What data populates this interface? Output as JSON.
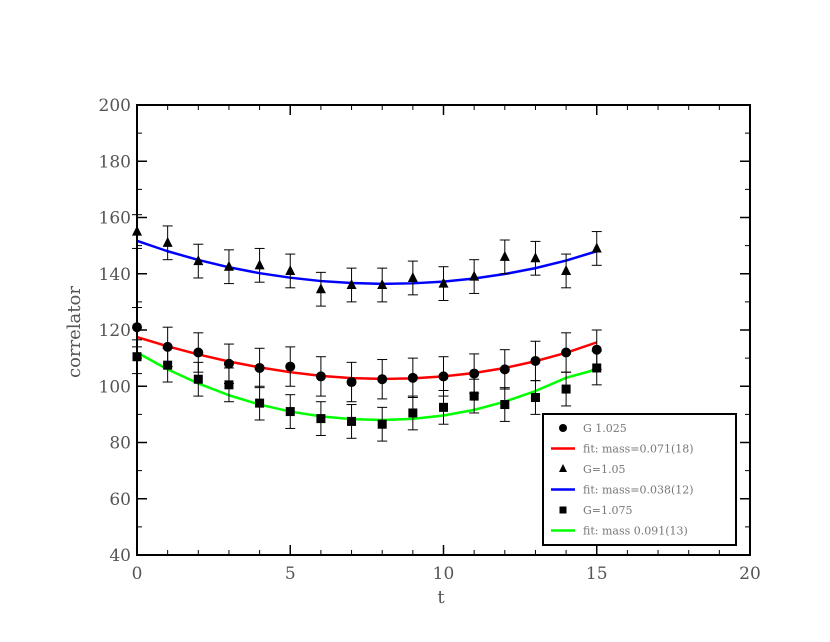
{
  "chart_data": {
    "type": "scatter",
    "xlabel": "t",
    "ylabel": "correlator",
    "xlim": [
      0,
      20
    ],
    "ylim": [
      40,
      200
    ],
    "xticks": [
      0,
      5,
      10,
      15,
      20
    ],
    "yticks": [
      40,
      60,
      80,
      100,
      120,
      140,
      160,
      180,
      200
    ],
    "x_tick_labels": [
      "0",
      "5",
      "10",
      "15",
      "20"
    ],
    "y_tick_labels": [
      "40",
      "60",
      "80",
      "100",
      "120",
      "140",
      "160",
      "180",
      "200"
    ],
    "grid": false,
    "legend_position": "bottom-right",
    "series": [
      {
        "name": "G 1.025",
        "marker": "circle",
        "color": "#000000",
        "x": [
          0,
          1,
          2,
          3,
          4,
          5,
          6,
          7,
          8,
          9,
          10,
          11,
          12,
          13,
          14,
          15
        ],
        "y": [
          121,
          114,
          112,
          108,
          106.5,
          107,
          103.5,
          101.5,
          102.5,
          103,
          103.5,
          104.5,
          106,
          109,
          112,
          113
        ],
        "err": [
          7,
          7,
          7,
          7,
          7,
          7,
          7,
          7,
          7,
          7,
          7,
          7,
          7,
          7,
          7,
          7
        ],
        "fit_name": "fit: mass=0.071(18)",
        "fit_color": "#ff0000",
        "fit_y": [
          117.5,
          114.2,
          111.3,
          108.8,
          106.7,
          105.0,
          103.7,
          102.9,
          102.6,
          102.8,
          103.5,
          104.7,
          106.5,
          108.9,
          111.9,
          115.6
        ]
      },
      {
        "name": "G=1.05",
        "marker": "triangle",
        "color": "#000000",
        "x": [
          0,
          1,
          2,
          3,
          4,
          5,
          6,
          7,
          8,
          9,
          10,
          11,
          12,
          13,
          14,
          15
        ],
        "y": [
          155,
          151,
          144.5,
          142.5,
          143,
          141,
          134.5,
          136,
          136,
          138.5,
          136.5,
          139,
          146,
          145.5,
          141,
          149
        ],
        "err": [
          6,
          6,
          6,
          6,
          6,
          6,
          6,
          6,
          6,
          6,
          6,
          6,
          6,
          6,
          6,
          6
        ],
        "fit_name": "fit: mass=0.038(12)",
        "fit_color": "#0000ff",
        "fit_y": [
          151.7,
          148.0,
          144.9,
          142.3,
          140.2,
          138.6,
          137.4,
          136.7,
          136.4,
          136.6,
          137.2,
          138.3,
          139.9,
          142.0,
          144.7,
          148.0
        ]
      },
      {
        "name": "G=1.075",
        "marker": "square",
        "color": "#000000",
        "x": [
          0,
          1,
          2,
          3,
          4,
          5,
          6,
          7,
          8,
          9,
          10,
          11,
          12,
          13,
          14,
          15
        ],
        "y": [
          110.5,
          107.5,
          102.5,
          100.5,
          94,
          91,
          88.5,
          87.5,
          86.5,
          90.5,
          92.5,
          96.5,
          93.5,
          96,
          99,
          106.5
        ],
        "err": [
          6,
          6,
          6,
          6,
          6,
          6,
          6,
          6,
          6,
          6,
          6,
          6,
          6,
          6,
          6,
          6
        ],
        "fit_name": "fit: mass 0.091(13)",
        "fit_color": "#00ff00",
        "fit_y": [
          112.0,
          106.0,
          101.0,
          96.8,
          93.5,
          91.0,
          89.3,
          88.3,
          88.0,
          88.4,
          89.6,
          91.6,
          94.5,
          98.3,
          103.0,
          106.0
        ]
      }
    ]
  }
}
